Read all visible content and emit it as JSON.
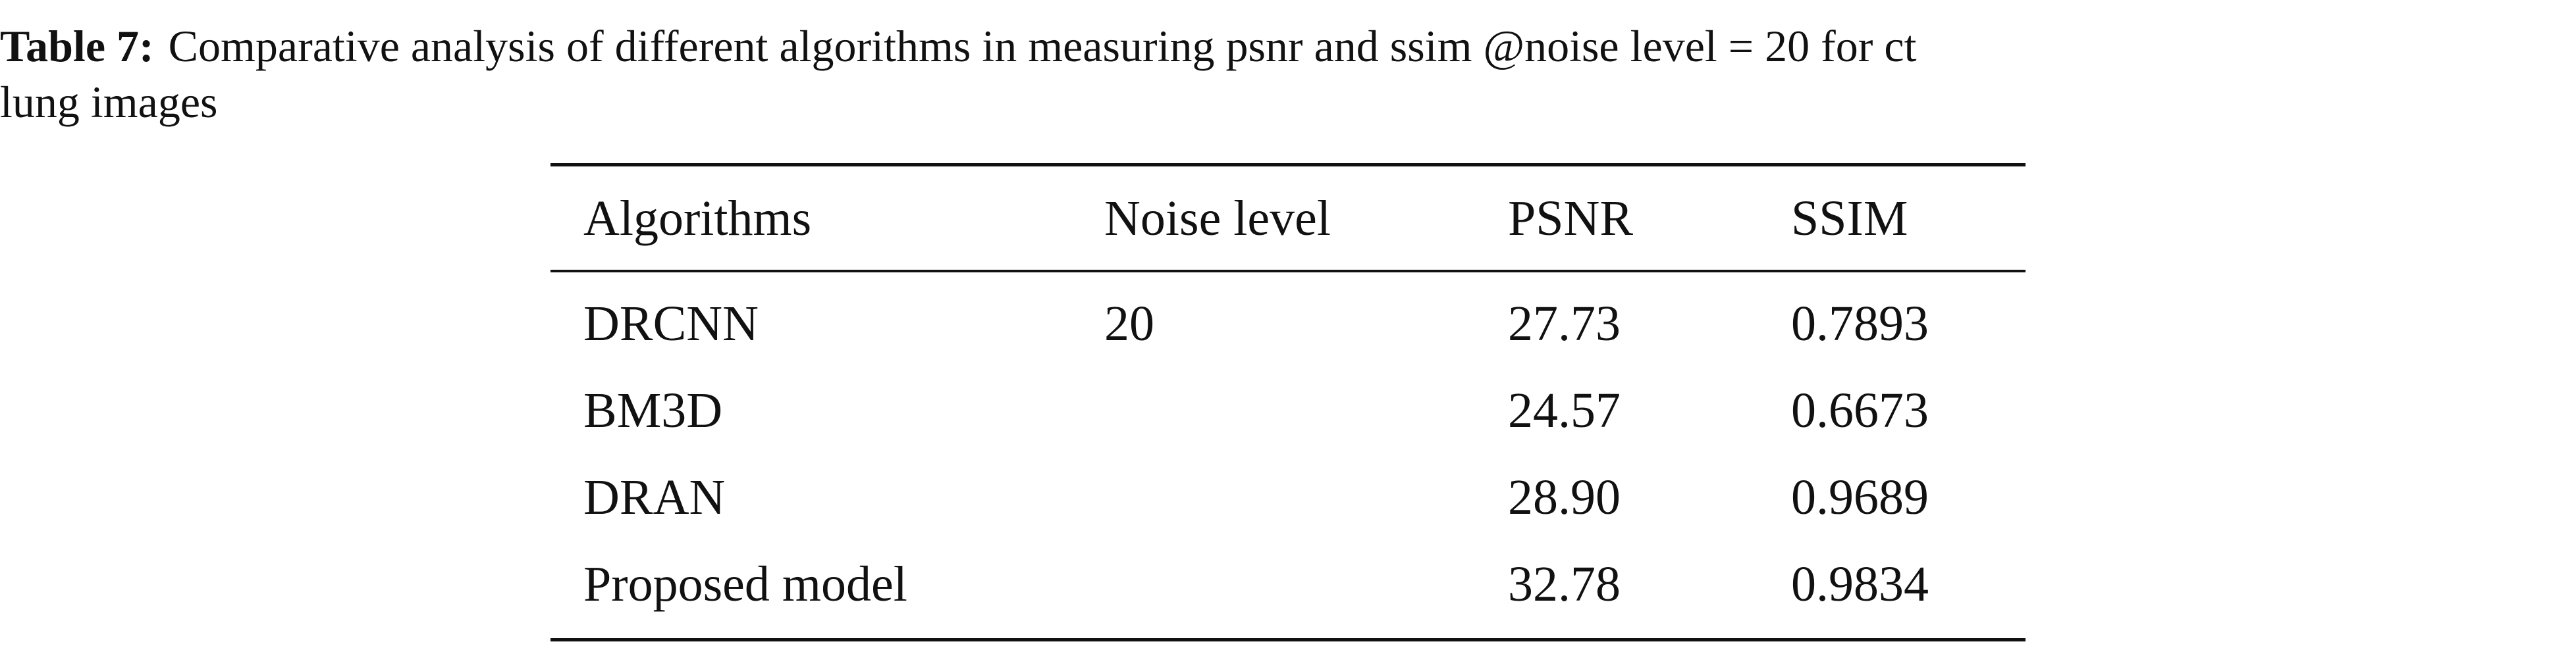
{
  "caption": {
    "label": "Table 7:",
    "line1": "Comparative analysis of different algorithms in measuring psnr and ssim @noise level = 20 for ct",
    "line2": "lung images"
  },
  "table": {
    "header": [
      "Algorithms",
      "Noise level",
      "PSNR",
      "SSIM"
    ],
    "rows": [
      [
        "DRCNN",
        "20",
        "27.73",
        "0.7893"
      ],
      [
        "BM3D",
        null,
        "24.57",
        "0.6673"
      ],
      [
        "DRAN",
        null,
        "28.90",
        "0.9689"
      ],
      [
        "Proposed model",
        null,
        "32.78",
        "0.9834"
      ]
    ]
  }
}
